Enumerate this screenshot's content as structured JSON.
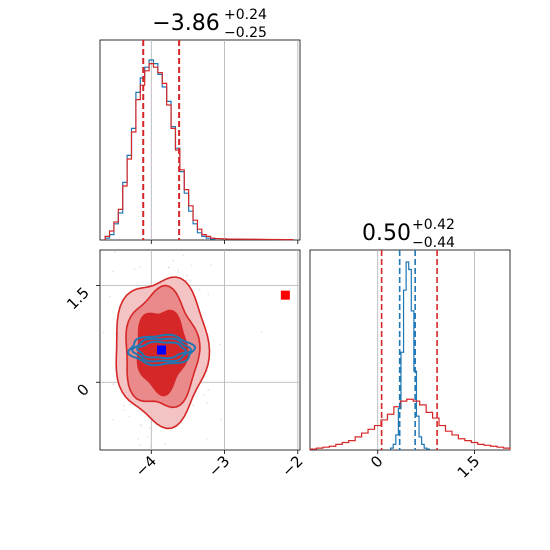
{
  "chart_data": [
    {
      "panel": "top-left",
      "type": "histogram",
      "title": {
        "value": "−3.86",
        "plus": "+0.24",
        "minus": "−0.25"
      },
      "xlim": [
        -4.7,
        -1.97
      ],
      "xticks": [
        -4,
        -3,
        -2
      ],
      "grid": true,
      "vlines": {
        "red_dashed": [
          -4.11,
          -3.62
        ]
      },
      "series": [
        {
          "color": "#1f77b4",
          "style": "step",
          "x": [
            -4.6,
            -4.54,
            -4.48,
            -4.42,
            -4.36,
            -4.3,
            -4.24,
            -4.18,
            -4.12,
            -4.06,
            -4.0,
            -3.94,
            -3.88,
            -3.82,
            -3.76,
            -3.7,
            -3.64,
            -3.58,
            -3.52,
            -3.46,
            -3.4,
            -3.34,
            -3.28,
            -3.22,
            -3.16
          ],
          "values": [
            0.01,
            0.03,
            0.09,
            0.15,
            0.32,
            0.47,
            0.62,
            0.82,
            0.9,
            0.96,
            1.0,
            0.98,
            0.92,
            0.85,
            0.77,
            0.63,
            0.51,
            0.38,
            0.26,
            0.16,
            0.09,
            0.04,
            0.02,
            0.01,
            0.005
          ]
        },
        {
          "color": "#d62728",
          "style": "step",
          "x": [
            -4.6,
            -4.54,
            -4.48,
            -4.42,
            -4.36,
            -4.3,
            -4.24,
            -4.18,
            -4.12,
            -4.06,
            -4.0,
            -3.94,
            -3.88,
            -3.82,
            -3.76,
            -3.7,
            -3.64,
            -3.58,
            -3.52,
            -3.46,
            -3.4,
            -3.34,
            -3.28,
            -3.22,
            -3.16,
            -3.1,
            -2.9,
            -2.6,
            -2.35,
            -2.1
          ],
          "values": [
            0.02,
            0.05,
            0.1,
            0.17,
            0.3,
            0.45,
            0.6,
            0.78,
            0.86,
            0.94,
            0.98,
            0.96,
            0.93,
            0.87,
            0.75,
            0.62,
            0.5,
            0.39,
            0.28,
            0.19,
            0.11,
            0.06,
            0.03,
            0.02,
            0.01,
            0.008,
            0.005,
            0.004,
            0.003,
            0.002
          ]
        }
      ]
    },
    {
      "panel": "bottom-left",
      "type": "contour",
      "xlim": [
        -4.7,
        -1.97
      ],
      "ylim": [
        -1.05,
        2.05
      ],
      "xticks": [
        -4,
        -3,
        -2
      ],
      "yticks": [
        0.0,
        1.5
      ],
      "grid": true,
      "series": [
        {
          "color": "#d62728",
          "type": "filled-contours",
          "center": [
            -3.86,
            0.5
          ],
          "spread": [
            0.27,
            0.55
          ]
        },
        {
          "color": "#1f77b4",
          "type": "contour-lines",
          "center": [
            -3.86,
            0.5
          ],
          "spread": [
            0.3,
            0.12
          ]
        }
      ],
      "markers": [
        {
          "color": "#0000ff",
          "shape": "square",
          "x": -3.86,
          "y": 0.5
        },
        {
          "color": "#ff0000",
          "shape": "square",
          "x": -2.17,
          "y": 1.35
        }
      ]
    },
    {
      "panel": "bottom-right",
      "type": "histogram",
      "title": {
        "value": "0.50",
        "plus": "+0.42",
        "minus": "−0.44"
      },
      "xlim": [
        -1.05,
        2.05
      ],
      "xticks": [
        0.0,
        1.5
      ],
      "grid": true,
      "vlines": {
        "red_dashed": [
          0.06,
          0.92
        ],
        "blue_dashed": [
          0.34,
          0.58
        ]
      },
      "series": [
        {
          "color": "#1f77b4",
          "style": "step",
          "x": [
            0.22,
            0.26,
            0.3,
            0.34,
            0.38,
            0.42,
            0.46,
            0.5,
            0.54,
            0.58,
            0.62,
            0.66,
            0.7,
            0.74,
            0.78
          ],
          "values": [
            0.01,
            0.03,
            0.08,
            0.22,
            0.52,
            0.85,
            1.0,
            0.96,
            0.74,
            0.42,
            0.18,
            0.07,
            0.03,
            0.01,
            0.005
          ]
        },
        {
          "color": "#d62728",
          "style": "step",
          "x": [
            -1.0,
            -0.9,
            -0.8,
            -0.7,
            -0.6,
            -0.5,
            -0.4,
            -0.3,
            -0.2,
            -0.1,
            0.0,
            0.1,
            0.2,
            0.3,
            0.4,
            0.5,
            0.6,
            0.7,
            0.8,
            0.9,
            1.0,
            1.1,
            1.2,
            1.3,
            1.4,
            1.5,
            1.6,
            1.7,
            1.8,
            1.9,
            2.0
          ],
          "values": [
            0.005,
            0.01,
            0.015,
            0.02,
            0.03,
            0.04,
            0.05,
            0.07,
            0.09,
            0.11,
            0.13,
            0.16,
            0.19,
            0.23,
            0.26,
            0.27,
            0.26,
            0.24,
            0.2,
            0.17,
            0.13,
            0.1,
            0.08,
            0.06,
            0.05,
            0.04,
            0.03,
            0.025,
            0.02,
            0.015,
            0.01
          ]
        }
      ]
    }
  ]
}
